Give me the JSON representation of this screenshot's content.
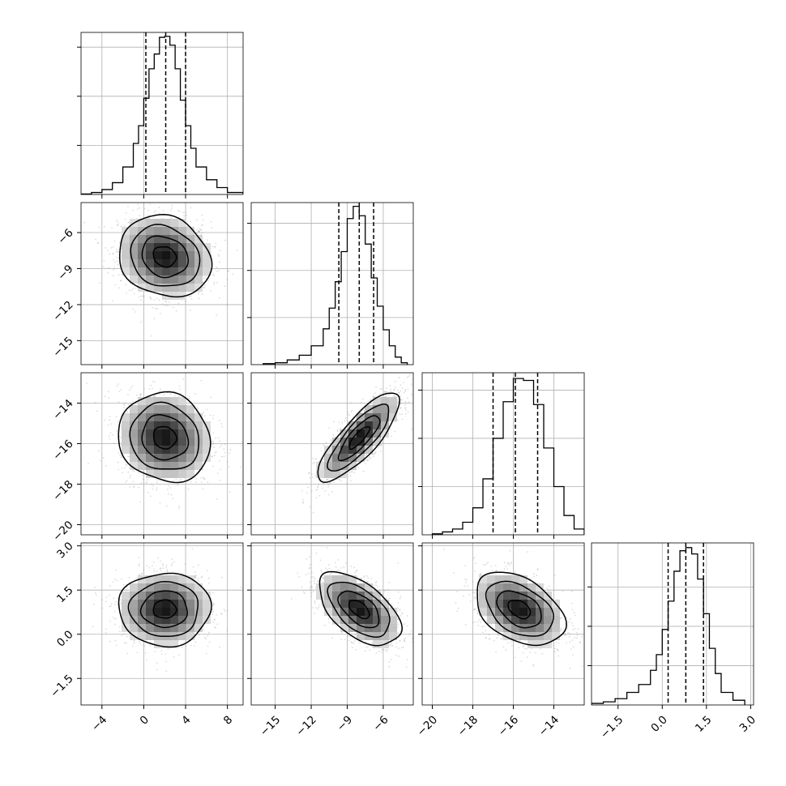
{
  "chart_data": {
    "type": "corner",
    "title": "",
    "grid": true,
    "params": [
      {
        "range": [
          -6.0,
          9.5
        ],
        "ticks": [
          -4,
          0,
          4,
          8
        ],
        "tick_labels": [
          "−4",
          "0",
          "4",
          "8"
        ],
        "quantiles": [
          0.2,
          2.1,
          4.0
        ],
        "hist_bins": [
          -6.0,
          -5.0,
          -4.0,
          -3.0,
          -2.0,
          -1.0,
          -0.5,
          0.0,
          0.5,
          1.0,
          1.5,
          2.0,
          2.5,
          3.0,
          3.5,
          4.0,
          4.5,
          5.0,
          6.0,
          7.0,
          8.0,
          9.5
        ],
        "hist_counts": [
          0.5,
          2,
          5,
          12,
          28,
          52,
          70,
          98,
          128,
          143,
          160,
          161,
          152,
          128,
          96,
          70,
          47,
          28,
          15,
          7,
          2
        ],
        "hist_ymax": 165,
        "hist_yticks": [
          50,
          100,
          150
        ]
      },
      {
        "range": [
          -17.0,
          -3.5
        ],
        "ticks": [
          -15,
          -12,
          -9,
          -6
        ],
        "tick_labels": [
          "−15",
          "−12",
          "−9",
          "−6"
        ],
        "quantiles": [
          -9.7,
          -8.0,
          -6.8
        ],
        "hist_bins": [
          -16.0,
          -15.0,
          -14.0,
          -13.0,
          -12.0,
          -11.0,
          -10.5,
          -10.0,
          -9.5,
          -9.0,
          -8.5,
          -8.0,
          -7.5,
          -7.0,
          -6.5,
          -6.0,
          -5.5,
          -5.0,
          -4.5,
          -4.0
        ],
        "hist_counts": [
          1,
          2,
          5,
          10,
          20,
          38,
          60,
          88,
          120,
          155,
          168,
          158,
          128,
          92,
          62,
          37,
          20,
          8,
          2
        ],
        "hist_ymax": 172,
        "hist_yticks": [
          50,
          100,
          150
        ]
      },
      {
        "range": [
          -20.5,
          -12.5
        ],
        "ticks": [
          -20,
          -18,
          -16,
          -14
        ],
        "tick_labels": [
          "−20",
          "−18",
          "−16",
          "−14"
        ],
        "quantiles": [
          -17.0,
          -15.9,
          -14.8
        ],
        "hist_bins": [
          -20.0,
          -19.5,
          -19.0,
          -18.5,
          -18.0,
          -17.5,
          -17.0,
          -16.5,
          -16.0,
          -15.5,
          -15.0,
          -14.5,
          -14.0,
          -13.5,
          -13.0,
          -12.5
        ],
        "hist_counts": [
          1,
          3,
          6,
          13,
          28,
          58,
          100,
          138,
          162,
          160,
          135,
          90,
          50,
          20,
          6
        ],
        "hist_ymax": 168,
        "hist_yticks": [
          50,
          100,
          150
        ]
      },
      {
        "range": [
          -2.4,
          3.1
        ],
        "ticks": [
          -1.5,
          0.0,
          1.5,
          3.0
        ],
        "tick_labels": [
          "−1.5",
          "0.0",
          "1.5",
          "3.0"
        ],
        "quantiles": [
          0.2,
          0.8,
          1.4
        ],
        "hist_bins": [
          -2.4,
          -2.0,
          -1.6,
          -1.2,
          -0.8,
          -0.4,
          -0.2,
          0.0,
          0.2,
          0.4,
          0.6,
          0.8,
          1.0,
          1.2,
          1.4,
          1.6,
          1.8,
          2.0,
          2.4,
          2.8
        ],
        "hist_counts": [
          1,
          2,
          4,
          8,
          13,
          22,
          32,
          48,
          66,
          85,
          98,
          100,
          96,
          80,
          58,
          36,
          20,
          8,
          3
        ],
        "hist_ymax": 103,
        "hist_yticks": [
          25,
          50,
          75
        ]
      }
    ],
    "pairs": [
      {
        "row": 1,
        "col": 0,
        "center": [
          2.0,
          -8.0
        ],
        "sigma": [
          2.2,
          1.7
        ],
        "corr": -0.15
      },
      {
        "row": 2,
        "col": 0,
        "center": [
          2.0,
          -15.7
        ],
        "sigma": [
          2.2,
          1.1
        ],
        "corr": -0.1
      },
      {
        "row": 2,
        "col": 1,
        "center": [
          -8.0,
          -15.7
        ],
        "sigma": [
          1.7,
          1.1
        ],
        "corr": 0.82
      },
      {
        "row": 3,
        "col": 0,
        "center": [
          2.0,
          0.85
        ],
        "sigma": [
          2.2,
          0.62
        ],
        "corr": 0.0
      },
      {
        "row": 3,
        "col": 1,
        "center": [
          -8.0,
          0.85
        ],
        "sigma": [
          1.7,
          0.62
        ],
        "corr": -0.55
      },
      {
        "row": 3,
        "col": 2,
        "center": [
          -15.7,
          0.85
        ],
        "sigma": [
          1.1,
          0.62
        ],
        "corr": -0.4
      }
    ],
    "contour_levels": [
      0.5,
      1.0,
      1.5,
      2.0
    ],
    "colors": {
      "line": "#000000",
      "grid": "#b0b0b0",
      "points": "#9a9a9a",
      "density_dark": "#111111",
      "density_light": "#ffffff"
    }
  }
}
